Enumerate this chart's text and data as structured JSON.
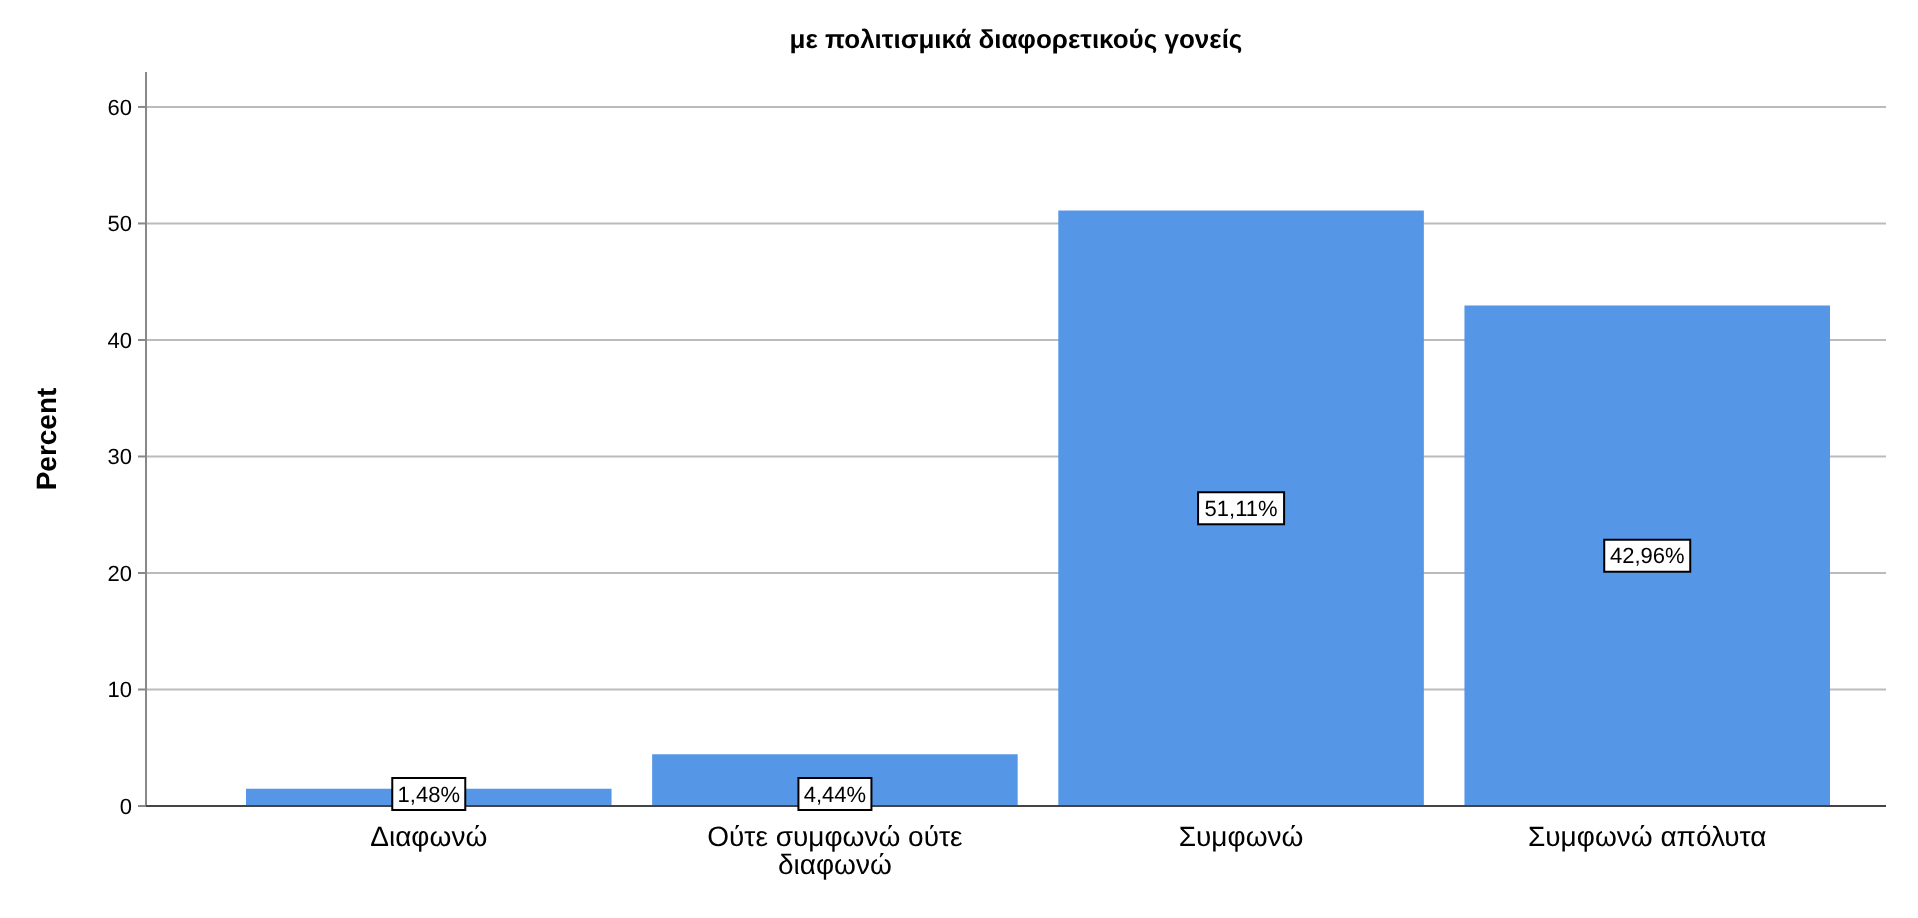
{
  "chart_data": {
    "type": "bar",
    "title": "με πολιτισμικά διαφορετικούς γονείς",
    "ylabel": "Percent",
    "categories": [
      "Διαφωνώ",
      "Ούτε συμφωνώ ούτε διαφωνώ",
      "Συμφωνώ",
      "Συμφωνώ απόλυτα"
    ],
    "values": [
      1.48,
      4.44,
      51.11,
      42.96
    ],
    "value_labels": [
      "1,48%",
      "4,44%",
      "51,11%",
      "42,96%"
    ],
    "color": "#5596e6",
    "ylim": [
      0,
      63
    ],
    "yticks": [
      0,
      10,
      20,
      30,
      40,
      50,
      60
    ],
    "grid": "y"
  }
}
